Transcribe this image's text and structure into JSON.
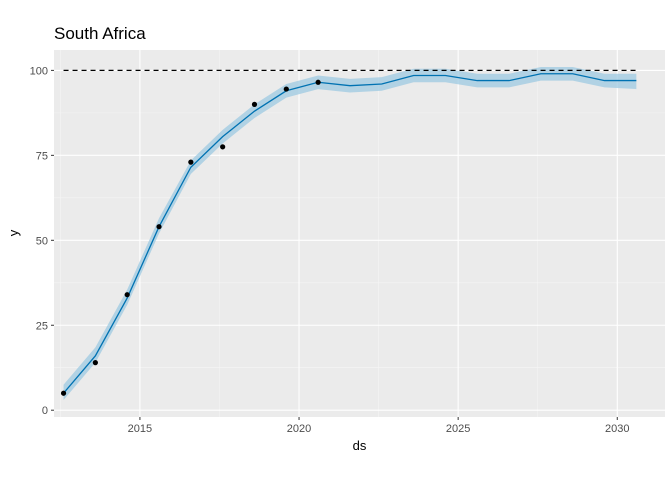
{
  "chart_data": {
    "type": "line",
    "title": "South Africa",
    "xlabel": "ds",
    "ylabel": "y",
    "xlim": [
      2012.3,
      2031.5
    ],
    "ylim": [
      -2,
      106
    ],
    "x_ticks": [
      2015,
      2020,
      2025,
      2030
    ],
    "y_ticks": [
      0,
      25,
      50,
      75,
      100
    ],
    "x_minor_ticks": [
      2012.5,
      2017.5,
      2022.5,
      2027.5
    ],
    "y_minor_ticks": [
      12.5,
      37.5,
      62.5,
      87.5
    ],
    "grid": true,
    "colors": {
      "panel_bg": "#ebebeb",
      "grid_major": "#ffffff",
      "grid_minor": "#f5f5f5",
      "forecast_line": "#0072b2",
      "interval_band": "#9ecae1",
      "points": "#000000",
      "cap_line": "#000000"
    },
    "cap": 100,
    "observed": {
      "x": [
        2012.6,
        2013.6,
        2014.6,
        2015.6,
        2016.6,
        2017.6,
        2018.6,
        2019.6,
        2020.6
      ],
      "y": [
        5,
        14,
        34,
        54,
        73,
        77.5,
        90,
        94.5,
        96.5
      ]
    },
    "forecast": {
      "x": [
        2012.6,
        2013.6,
        2014.6,
        2015.6,
        2016.6,
        2017.6,
        2018.6,
        2019.6,
        2020.6,
        2021.6,
        2022.6,
        2023.6,
        2024.6,
        2025.6,
        2026.6,
        2027.6,
        2028.6,
        2029.6,
        2030.6
      ],
      "yhat": [
        5,
        16,
        33,
        54,
        71.5,
        80.5,
        88,
        94,
        96.5,
        95.5,
        96,
        98.5,
        98.5,
        97,
        97,
        99,
        99,
        97,
        97
      ],
      "yhat_lower": [
        3,
        14,
        31,
        52,
        69.5,
        78.5,
        86,
        92,
        94.5,
        93.5,
        94,
        96.5,
        96.5,
        95,
        95,
        97,
        97,
        95,
        94.5
      ],
      "yhat_upper": [
        7.5,
        18.5,
        35.5,
        56.5,
        73.5,
        82.5,
        90,
        96,
        98.5,
        97.5,
        98,
        100.5,
        100.5,
        99,
        99,
        101,
        101,
        99,
        99
      ]
    }
  }
}
